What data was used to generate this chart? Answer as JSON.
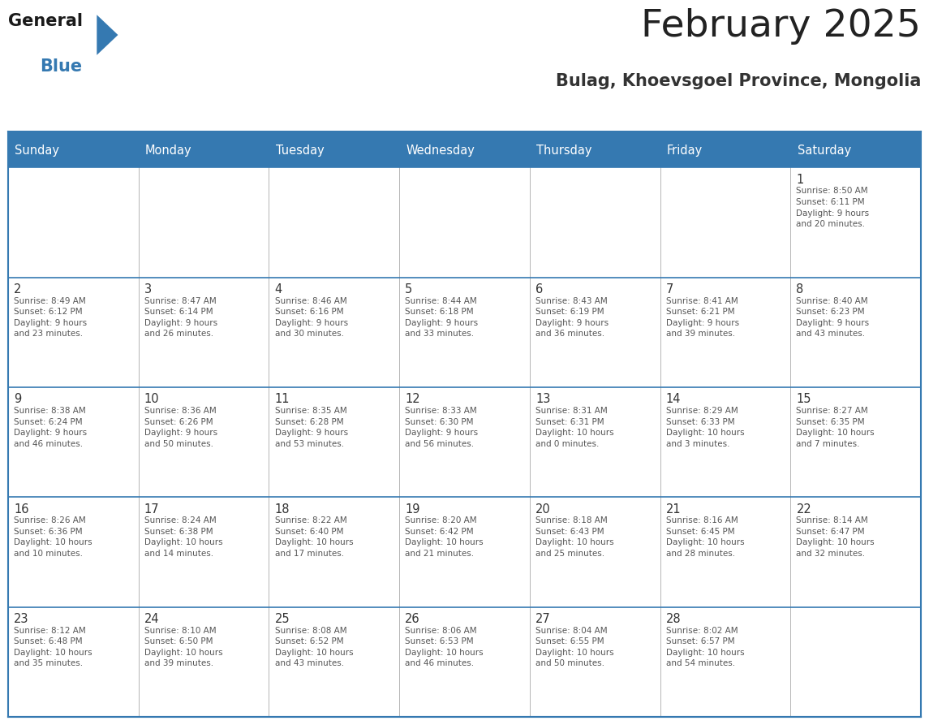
{
  "title": "February 2025",
  "subtitle": "Bulag, Khoevsgoel Province, Mongolia",
  "header_color": "#3579B1",
  "header_text_color": "#FFFFFF",
  "border_color": "#3579B1",
  "cell_divider_color": "#AAAAAA",
  "day_headers": [
    "Sunday",
    "Monday",
    "Tuesday",
    "Wednesday",
    "Thursday",
    "Friday",
    "Saturday"
  ],
  "title_color": "#222222",
  "subtitle_color": "#333333",
  "day_number_color": "#333333",
  "cell_text_color": "#555555",
  "logo_general_color": "#1a1a1a",
  "logo_blue_color": "#3579B1",
  "logo_triangle_color": "#3579B1",
  "calendar_data": [
    [
      null,
      null,
      null,
      null,
      null,
      null,
      {
        "day": "1",
        "sunrise": "8:50 AM",
        "sunset": "6:11 PM",
        "daylight": "9 hours\nand 20 minutes."
      }
    ],
    [
      {
        "day": "2",
        "sunrise": "8:49 AM",
        "sunset": "6:12 PM",
        "daylight": "9 hours\nand 23 minutes."
      },
      {
        "day": "3",
        "sunrise": "8:47 AM",
        "sunset": "6:14 PM",
        "daylight": "9 hours\nand 26 minutes."
      },
      {
        "day": "4",
        "sunrise": "8:46 AM",
        "sunset": "6:16 PM",
        "daylight": "9 hours\nand 30 minutes."
      },
      {
        "day": "5",
        "sunrise": "8:44 AM",
        "sunset": "6:18 PM",
        "daylight": "9 hours\nand 33 minutes."
      },
      {
        "day": "6",
        "sunrise": "8:43 AM",
        "sunset": "6:19 PM",
        "daylight": "9 hours\nand 36 minutes."
      },
      {
        "day": "7",
        "sunrise": "8:41 AM",
        "sunset": "6:21 PM",
        "daylight": "9 hours\nand 39 minutes."
      },
      {
        "day": "8",
        "sunrise": "8:40 AM",
        "sunset": "6:23 PM",
        "daylight": "9 hours\nand 43 minutes."
      }
    ],
    [
      {
        "day": "9",
        "sunrise": "8:38 AM",
        "sunset": "6:24 PM",
        "daylight": "9 hours\nand 46 minutes."
      },
      {
        "day": "10",
        "sunrise": "8:36 AM",
        "sunset": "6:26 PM",
        "daylight": "9 hours\nand 50 minutes."
      },
      {
        "day": "11",
        "sunrise": "8:35 AM",
        "sunset": "6:28 PM",
        "daylight": "9 hours\nand 53 minutes."
      },
      {
        "day": "12",
        "sunrise": "8:33 AM",
        "sunset": "6:30 PM",
        "daylight": "9 hours\nand 56 minutes."
      },
      {
        "day": "13",
        "sunrise": "8:31 AM",
        "sunset": "6:31 PM",
        "daylight": "10 hours\nand 0 minutes."
      },
      {
        "day": "14",
        "sunrise": "8:29 AM",
        "sunset": "6:33 PM",
        "daylight": "10 hours\nand 3 minutes."
      },
      {
        "day": "15",
        "sunrise": "8:27 AM",
        "sunset": "6:35 PM",
        "daylight": "10 hours\nand 7 minutes."
      }
    ],
    [
      {
        "day": "16",
        "sunrise": "8:26 AM",
        "sunset": "6:36 PM",
        "daylight": "10 hours\nand 10 minutes."
      },
      {
        "day": "17",
        "sunrise": "8:24 AM",
        "sunset": "6:38 PM",
        "daylight": "10 hours\nand 14 minutes."
      },
      {
        "day": "18",
        "sunrise": "8:22 AM",
        "sunset": "6:40 PM",
        "daylight": "10 hours\nand 17 minutes."
      },
      {
        "day": "19",
        "sunrise": "8:20 AM",
        "sunset": "6:42 PM",
        "daylight": "10 hours\nand 21 minutes."
      },
      {
        "day": "20",
        "sunrise": "8:18 AM",
        "sunset": "6:43 PM",
        "daylight": "10 hours\nand 25 minutes."
      },
      {
        "day": "21",
        "sunrise": "8:16 AM",
        "sunset": "6:45 PM",
        "daylight": "10 hours\nand 28 minutes."
      },
      {
        "day": "22",
        "sunrise": "8:14 AM",
        "sunset": "6:47 PM",
        "daylight": "10 hours\nand 32 minutes."
      }
    ],
    [
      {
        "day": "23",
        "sunrise": "8:12 AM",
        "sunset": "6:48 PM",
        "daylight": "10 hours\nand 35 minutes."
      },
      {
        "day": "24",
        "sunrise": "8:10 AM",
        "sunset": "6:50 PM",
        "daylight": "10 hours\nand 39 minutes."
      },
      {
        "day": "25",
        "sunrise": "8:08 AM",
        "sunset": "6:52 PM",
        "daylight": "10 hours\nand 43 minutes."
      },
      {
        "day": "26",
        "sunrise": "8:06 AM",
        "sunset": "6:53 PM",
        "daylight": "10 hours\nand 46 minutes."
      },
      {
        "day": "27",
        "sunrise": "8:04 AM",
        "sunset": "6:55 PM",
        "daylight": "10 hours\nand 50 minutes."
      },
      {
        "day": "28",
        "sunrise": "8:02 AM",
        "sunset": "6:57 PM",
        "daylight": "10 hours\nand 54 minutes."
      },
      null
    ]
  ]
}
